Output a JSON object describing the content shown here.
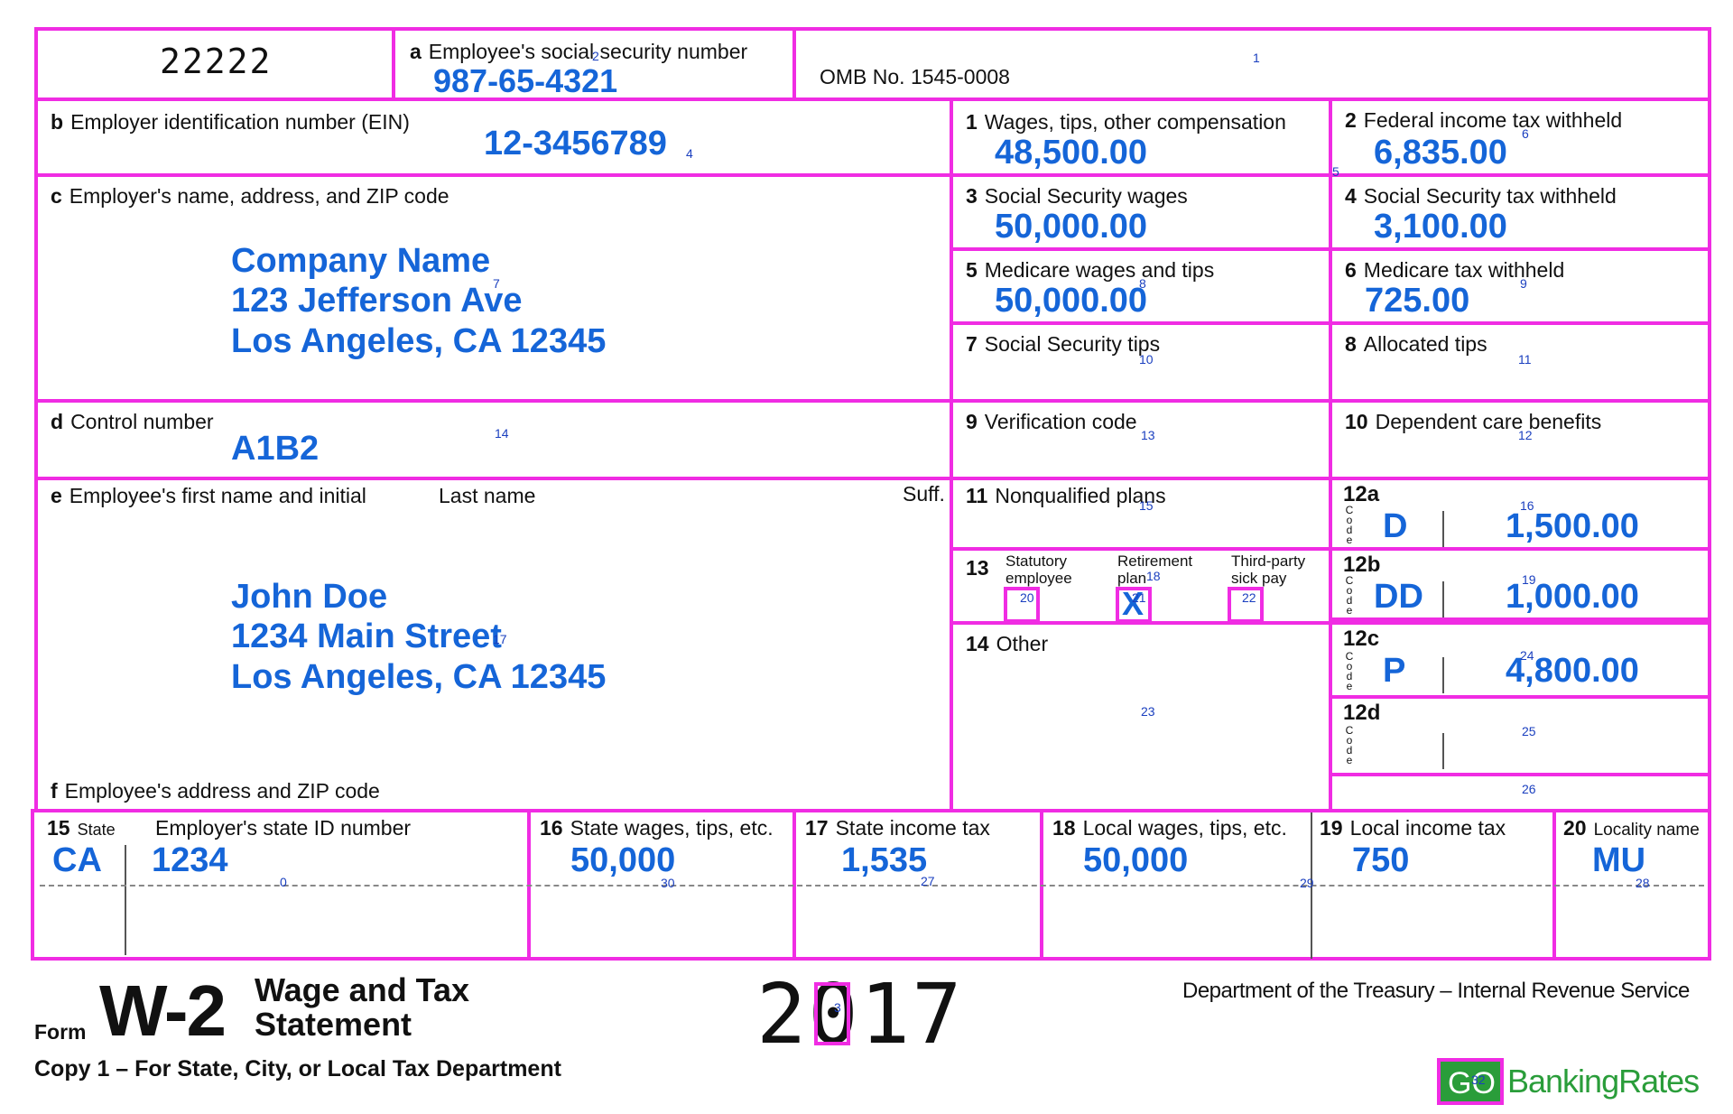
{
  "top": {
    "form_code": "22222",
    "ssn_label": "Employee's social security number",
    "ssn_letter": "a",
    "ssn": "987-65-4321",
    "omb": "OMB No.  1545-0008"
  },
  "ein": {
    "letter": "b",
    "label": "Employer identification number (EIN)",
    "value": "12-3456789"
  },
  "employer": {
    "letter": "c",
    "label": "Employer's name, address, and ZIP code",
    "name": "Company Name",
    "street": "123 Jefferson Ave",
    "city": "Los Angeles, CA 12345"
  },
  "control": {
    "letter": "d",
    "label": "Control number",
    "value": "A1B2"
  },
  "employee": {
    "letter": "e",
    "first_label": "Employee's first name and initial",
    "last_label": "Last name",
    "suff_label": "Suff.",
    "name": "John Doe",
    "street": "1234 Main Street",
    "city": "Los Angeles, CA 12345",
    "address_letter": "f",
    "address_label": "Employee's address and ZIP code"
  },
  "boxes": {
    "b1": {
      "num": "1",
      "label": "Wages, tips, other compensation",
      "value": "48,500.00"
    },
    "b2": {
      "num": "2",
      "label": "Federal income tax withheld",
      "value": "6,835.00"
    },
    "b3": {
      "num": "3",
      "label": "Social Security wages",
      "value": "50,000.00"
    },
    "b4": {
      "num": "4",
      "label": "Social Security tax withheld",
      "value": "3,100.00"
    },
    "b5": {
      "num": "5",
      "label": "Medicare wages and tips",
      "value": "50,000.00"
    },
    "b6": {
      "num": "6",
      "label": "Medicare tax withheld",
      "value": "725.00"
    },
    "b7": {
      "num": "7",
      "label": "Social Security tips"
    },
    "b8": {
      "num": "8",
      "label": "Allocated tips"
    },
    "b9": {
      "num": "9",
      "label": "Verification code"
    },
    "b10": {
      "num": "10",
      "label": "Dependent care benefits"
    },
    "b11": {
      "num": "11",
      "label": "Nonqualified plans"
    },
    "b13": {
      "num": "13",
      "statutory": [
        "Statutory",
        "employee"
      ],
      "retirement": [
        "Retirement",
        "plan"
      ],
      "thirdparty": [
        "Third-party",
        "sick pay"
      ],
      "retirement_mark": "X"
    },
    "b14": {
      "num": "14",
      "label": "Other"
    },
    "b12a": {
      "num": "12a",
      "code": "D",
      "amount": "1,500.00"
    },
    "b12b": {
      "num": "12b",
      "code": "DD",
      "amount": "1,000.00"
    },
    "b12c": {
      "num": "12c",
      "code": "P",
      "amount": "4,800.00"
    },
    "b12d": {
      "num": "12d"
    }
  },
  "code_letters": [
    "C",
    "o",
    "d",
    "e"
  ],
  "state_row": {
    "b15": {
      "num": "15",
      "label": "State",
      "value": "CA",
      "id_label": "Employer's state ID number",
      "id_value": "1234"
    },
    "b16": {
      "num": "16",
      "label": "State wages, tips, etc.",
      "value": "50,000"
    },
    "b17": {
      "num": "17",
      "label": "State income tax",
      "value": "1,535"
    },
    "b18": {
      "num": "18",
      "label": "Local wages, tips, etc.",
      "value": "50,000"
    },
    "b19": {
      "num": "19",
      "label": "Local income tax",
      "value": "750"
    },
    "b20": {
      "num": "20",
      "label": "Locality name",
      "value": "MU"
    }
  },
  "footer": {
    "form_word": "Form",
    "form_id": "W-2",
    "title_line1": "Wage and Tax",
    "title_line2": "Statement",
    "year": "2017",
    "department": "Department of the Treasury – Internal Revenue Service",
    "copy": "Copy 1 – For State, City, or Local Tax Department",
    "logo_go": "GO",
    "logo_text": "BankingRates"
  },
  "markers": [
    "0",
    "1",
    "2",
    "3",
    "4",
    "5",
    "6",
    "7",
    "8",
    "9",
    "10",
    "11",
    "12",
    "13",
    "14",
    "15",
    "16",
    "17",
    "18",
    "19",
    "20",
    "21",
    "22",
    "23",
    "24",
    "25",
    "26",
    "27",
    "28",
    "29",
    "30",
    "32"
  ],
  "colors": {
    "frame": "#f02ce3",
    "value": "#1565d8",
    "marker": "#1a3fbf",
    "logo_green": "#2a9d3a"
  }
}
